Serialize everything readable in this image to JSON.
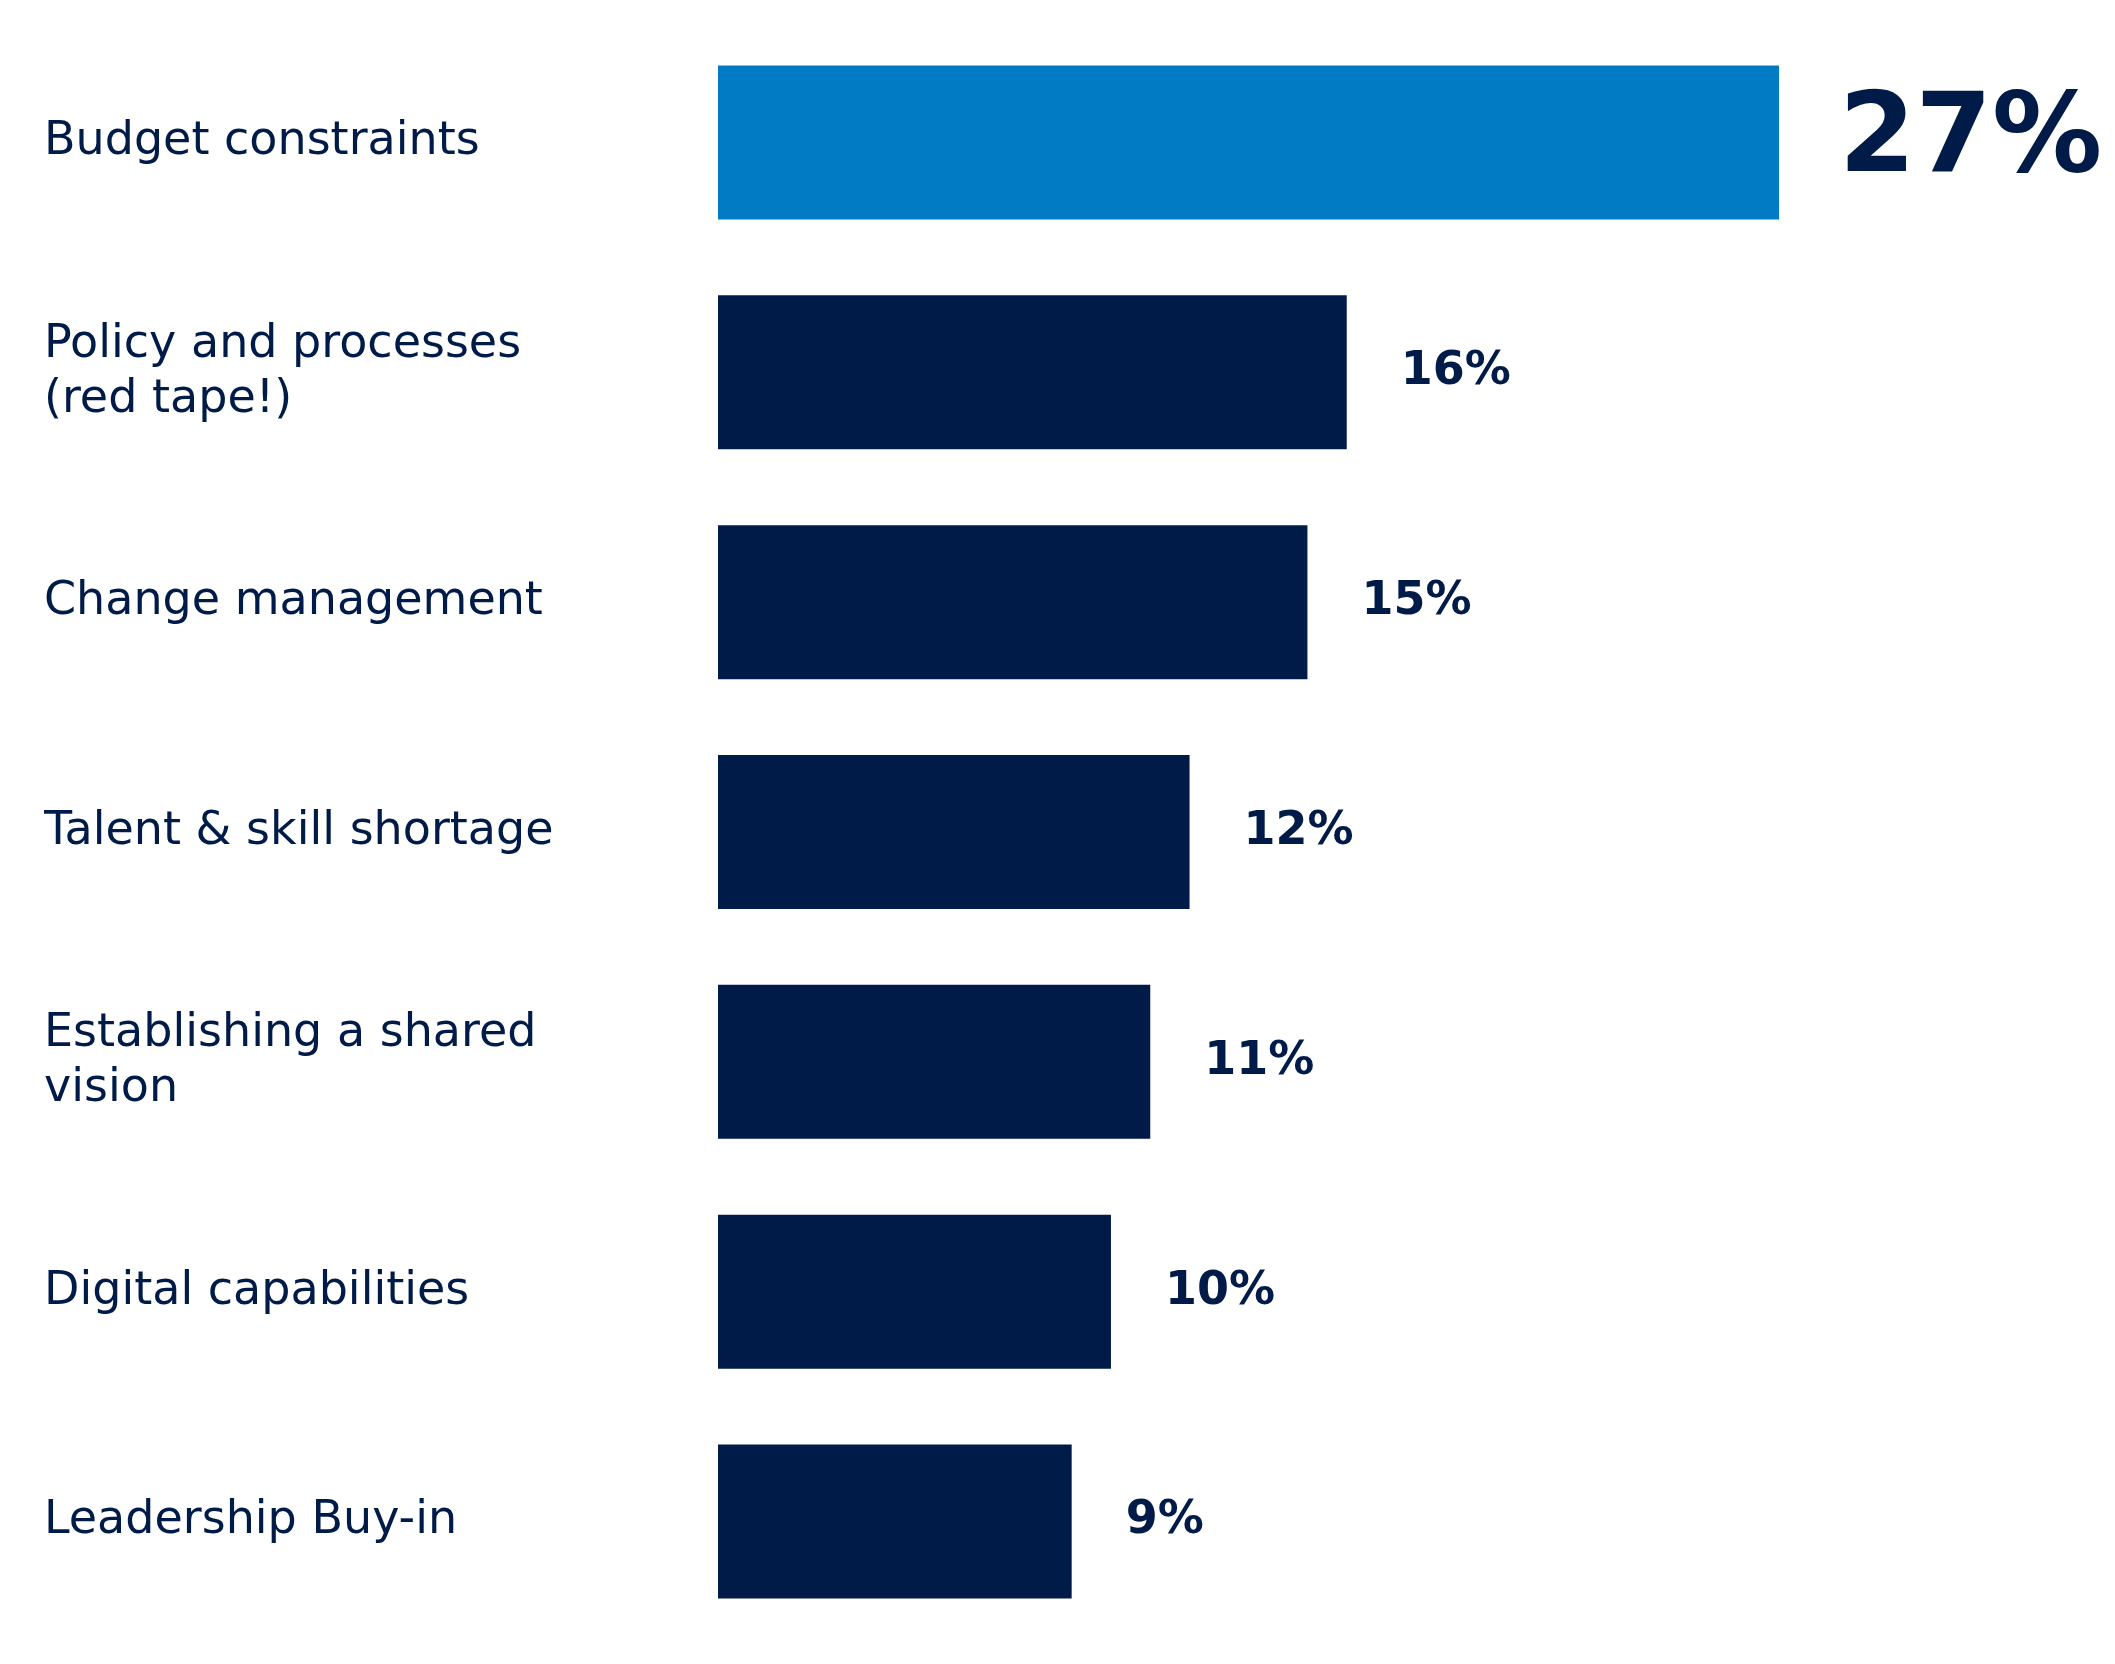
{
  "chart_data": {
    "type": "bar",
    "orientation": "horizontal",
    "categories": [
      "Budget constraints",
      "Policy and processes (red tape!)",
      "Change management",
      "Talent & skill shortage",
      "Establishing a shared vision",
      "Digital capabilities",
      "Leadership Buy-in"
    ],
    "values": [
      27,
      16,
      15,
      12,
      11,
      10,
      9
    ],
    "colors": [
      "#007bc4",
      "#001b48",
      "#001b48",
      "#001b48",
      "#001b48",
      "#001b48",
      "#001b48"
    ],
    "value_labels": [
      "27%",
      "16%",
      "15%",
      "12%",
      "11%",
      "10%",
      "9%"
    ],
    "legend": false
  }
}
